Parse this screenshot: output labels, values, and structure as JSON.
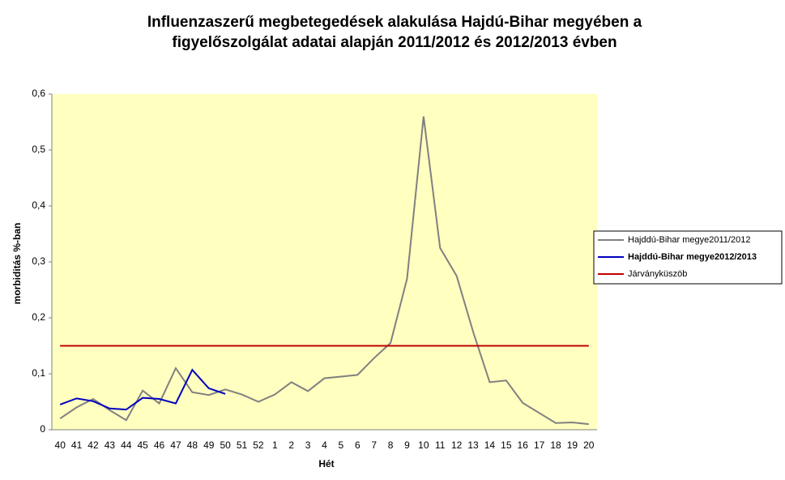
{
  "chart_data": {
    "type": "line",
    "title": [
      "Influenzaszerű megbetegedések alakulása Hajdú-Bihar megyében a",
      "figyelőszolgálat adatai alapján 2011/2012 és 2012/2013 évben"
    ],
    "x_label": "Hét",
    "y_label": "morbiditás %-ban",
    "categories": [
      "40",
      "41",
      "42",
      "43",
      "44",
      "45",
      "46",
      "47",
      "48",
      "49",
      "50",
      "51",
      "52",
      "1",
      "2",
      "3",
      "4",
      "5",
      "6",
      "7",
      "8",
      "9",
      "10",
      "11",
      "12",
      "13",
      "14",
      "15",
      "16",
      "17",
      "18",
      "19",
      "20"
    ],
    "series": [
      {
        "name": "Hajddú-Bihar megye2011/2012",
        "color": "#808080",
        "values": [
          0.02,
          0.04,
          0.055,
          0.035,
          0.017,
          0.07,
          0.047,
          0.11,
          0.067,
          0.062,
          0.072,
          0.063,
          0.05,
          0.063,
          0.085,
          0.069,
          0.092,
          0.095,
          0.098,
          0.128,
          0.155,
          0.27,
          0.56,
          0.325,
          0.275,
          0.175,
          0.085,
          0.088,
          0.048,
          0.03,
          0.012,
          0.013,
          0.01
        ]
      },
      {
        "name": "Hajddú-Bihar megye2012/2013",
        "color": "#0000c0",
        "values": [
          0.045,
          0.056,
          0.051,
          0.038,
          0.036,
          0.057,
          0.055,
          0.047,
          0.107,
          0.074,
          0.064,
          null,
          null,
          null,
          null,
          null,
          null,
          null,
          null,
          null,
          null,
          null,
          null,
          null,
          null,
          null,
          null,
          null,
          null,
          null,
          null,
          null,
          null
        ]
      },
      {
        "name": "Járványküszöb",
        "color": "#c00000",
        "values": [
          0.15,
          0.15,
          0.15,
          0.15,
          0.15,
          0.15,
          0.15,
          0.15,
          0.15,
          0.15,
          0.15,
          0.15,
          0.15,
          0.15,
          0.15,
          0.15,
          0.15,
          0.15,
          0.15,
          0.15,
          0.15,
          0.15,
          0.15,
          0.15,
          0.15,
          0.15,
          0.15,
          0.15,
          0.15,
          0.15,
          0.15,
          0.15,
          0.15
        ]
      }
    ],
    "ylim": [
      0,
      0.6
    ],
    "yticks": [
      0,
      {
        "value": 0.1,
        "label": "0,1"
      },
      {
        "value": 0.2,
        "label": "0,2"
      },
      {
        "value": 0.3,
        "label": "0,3"
      },
      {
        "value": 0.4,
        "label": "0,4"
      },
      {
        "value": 0.5,
        "label": "0,5"
      },
      {
        "value": 0.6,
        "label": "0,6"
      }
    ],
    "plot_background": "#ffffc0",
    "legend": "right"
  }
}
